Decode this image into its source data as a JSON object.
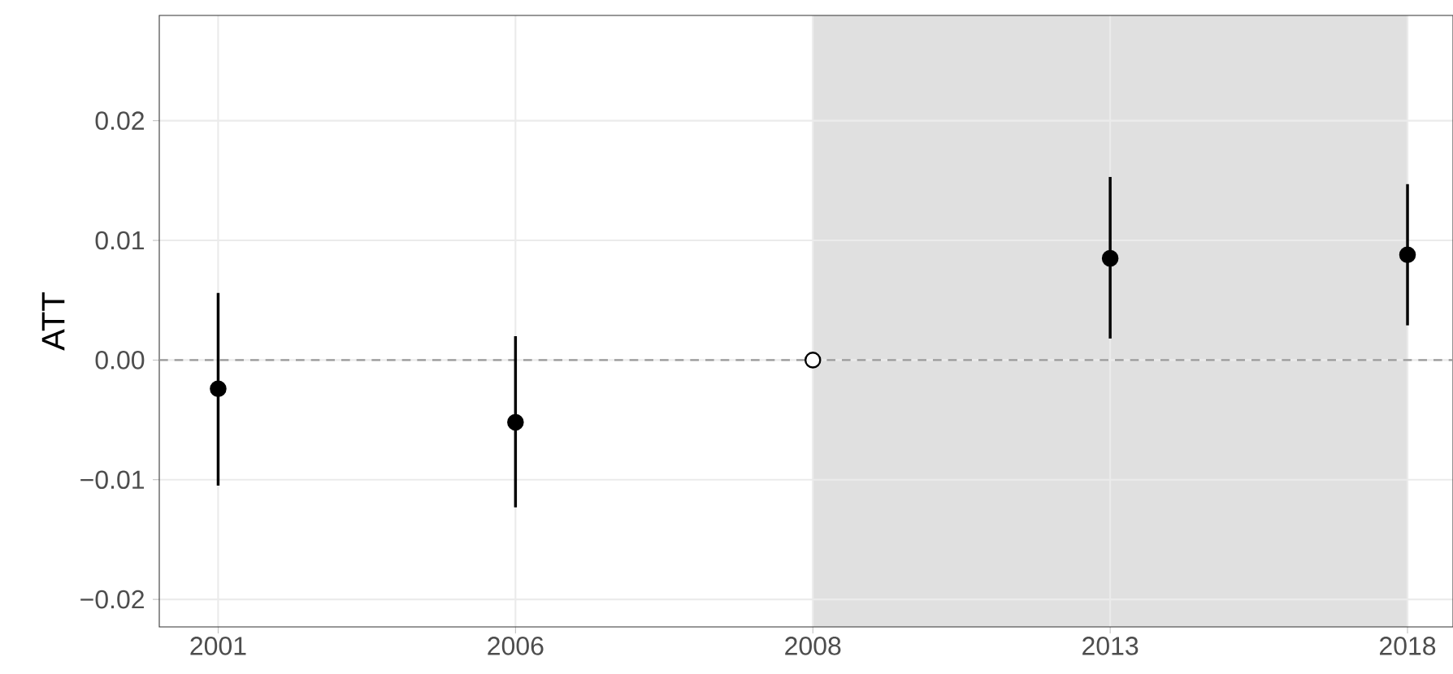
{
  "chart_data": {
    "type": "scatter",
    "ylabel": "ATT",
    "categories": [
      "2001",
      "2006",
      "2008",
      "2013",
      "2018"
    ],
    "series": [
      {
        "values": [
          -0.0024,
          -0.0052,
          0,
          0.0085,
          0.0088
        ],
        "colors": [
          "#000000",
          "#000000",
          "#ffffff",
          "#000000",
          "#000000"
        ],
        "errors": [
          [
            -0.0105,
            0.0056
          ],
          [
            -0.0123,
            0.002
          ],
          null,
          [
            0.0018,
            0.0153
          ],
          [
            0.0029,
            0.0147
          ]
        ]
      }
    ],
    "marker": "circle",
    "ylim": [
      -0.0223,
      0.0288
    ],
    "yticks": [
      {
        "value": -0.02,
        "label": "−0.02"
      },
      {
        "value": -0.01,
        "label": "−0.01"
      },
      {
        "value": 0,
        "label": "0.00"
      },
      {
        "value": 0.01,
        "label": "0.01"
      },
      {
        "value": 0.02,
        "label": "0.02"
      }
    ],
    "grid": true,
    "ref_lines": [
      {
        "axis": "y",
        "value": 0,
        "color": "#999999",
        "line_style": "dashed"
      }
    ],
    "bands": [
      {
        "axis": "x",
        "from": "2008",
        "to": "2018",
        "color": "#e0e0e0"
      }
    ]
  }
}
